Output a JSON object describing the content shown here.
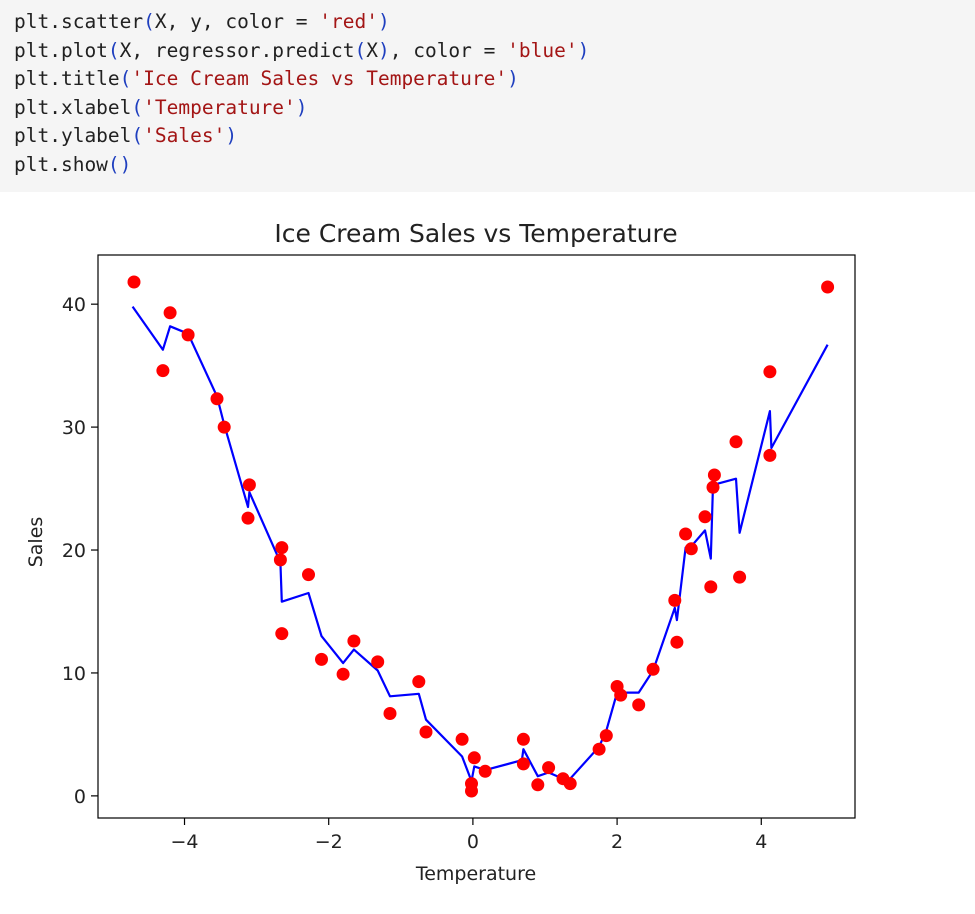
{
  "code_cell": {
    "lines": [
      [
        {
          "t": "plt.scatter",
          "k": "plain"
        },
        {
          "t": "(",
          "k": "paren"
        },
        {
          "t": "X, y, color = ",
          "k": "plain"
        },
        {
          "t": "'red'",
          "k": "str"
        },
        {
          "t": ")",
          "k": "paren"
        }
      ],
      [
        {
          "t": "plt.plot",
          "k": "plain"
        },
        {
          "t": "(",
          "k": "paren"
        },
        {
          "t": "X, regressor.predict",
          "k": "plain"
        },
        {
          "t": "(",
          "k": "paren"
        },
        {
          "t": "X",
          "k": "plain"
        },
        {
          "t": ")",
          "k": "paren"
        },
        {
          "t": ", color = ",
          "k": "plain"
        },
        {
          "t": "'blue'",
          "k": "str"
        },
        {
          "t": ")",
          "k": "paren"
        }
      ],
      [
        {
          "t": "plt.title",
          "k": "plain"
        },
        {
          "t": "(",
          "k": "paren"
        },
        {
          "t": "'Ice Cream Sales vs Temperature'",
          "k": "str"
        },
        {
          "t": ")",
          "k": "paren"
        }
      ],
      [
        {
          "t": "plt.xlabel",
          "k": "plain"
        },
        {
          "t": "(",
          "k": "paren"
        },
        {
          "t": "'Temperature'",
          "k": "str"
        },
        {
          "t": ")",
          "k": "paren"
        }
      ],
      [
        {
          "t": "plt.ylabel",
          "k": "plain"
        },
        {
          "t": "(",
          "k": "paren"
        },
        {
          "t": "'Sales'",
          "k": "str"
        },
        {
          "t": ")",
          "k": "paren"
        }
      ],
      [
        {
          "t": "plt.show",
          "k": "plain"
        },
        {
          "t": "()",
          "k": "paren"
        }
      ]
    ]
  },
  "chart_data": {
    "type": "scatter",
    "title": "Ice Cream Sales vs Temperature",
    "xlabel": "Temperature",
    "ylabel": "Sales",
    "xlim": [
      -5.2,
      5.3
    ],
    "ylim": [
      -1.8,
      44
    ],
    "xticks": [
      -4,
      -2,
      0,
      2,
      4
    ],
    "xtick_labels": [
      "−4",
      "−2",
      "0",
      "2",
      "4"
    ],
    "yticks": [
      0,
      10,
      20,
      30,
      40
    ],
    "ytick_labels": [
      "0",
      "10",
      "20",
      "30",
      "40"
    ],
    "grid": false,
    "point_color": "#ff0000",
    "line_color": "#0000ff",
    "points": [
      [
        -4.7,
        41.8
      ],
      [
        -4.3,
        34.6
      ],
      [
        -4.2,
        39.3
      ],
      [
        -3.95,
        37.5
      ],
      [
        -3.55,
        32.3
      ],
      [
        -3.45,
        30.0
      ],
      [
        -3.1,
        25.3
      ],
      [
        -3.12,
        22.6
      ],
      [
        -2.65,
        20.2
      ],
      [
        -2.67,
        19.2
      ],
      [
        -2.65,
        13.2
      ],
      [
        -2.28,
        18.0
      ],
      [
        -2.1,
        11.1
      ],
      [
        -1.8,
        9.9
      ],
      [
        -1.65,
        12.6
      ],
      [
        -1.32,
        10.9
      ],
      [
        -1.15,
        6.7
      ],
      [
        -0.75,
        9.3
      ],
      [
        -0.65,
        5.2
      ],
      [
        -0.15,
        4.6
      ],
      [
        -0.02,
        1.0
      ],
      [
        -0.02,
        0.4
      ],
      [
        0.02,
        3.1
      ],
      [
        0.17,
        2.0
      ],
      [
        0.7,
        4.6
      ],
      [
        0.7,
        2.6
      ],
      [
        0.9,
        0.9
      ],
      [
        1.05,
        2.3
      ],
      [
        1.25,
        1.4
      ],
      [
        1.35,
        1.0
      ],
      [
        1.75,
        3.8
      ],
      [
        1.85,
        4.9
      ],
      [
        2.0,
        8.9
      ],
      [
        2.05,
        8.2
      ],
      [
        2.3,
        7.4
      ],
      [
        2.5,
        10.3
      ],
      [
        2.8,
        15.9
      ],
      [
        2.83,
        12.5
      ],
      [
        2.95,
        21.3
      ],
      [
        3.03,
        20.1
      ],
      [
        3.22,
        22.7
      ],
      [
        3.3,
        17.0
      ],
      [
        3.33,
        25.1
      ],
      [
        3.35,
        26.1
      ],
      [
        3.65,
        28.8
      ],
      [
        3.7,
        17.8
      ],
      [
        4.12,
        34.5
      ],
      [
        4.12,
        27.7
      ],
      [
        4.92,
        41.4
      ]
    ],
    "line": [
      [
        -4.72,
        39.8
      ],
      [
        -4.3,
        36.3
      ],
      [
        -4.2,
        38.2
      ],
      [
        -3.95,
        37.6
      ],
      [
        -3.55,
        32.5
      ],
      [
        -3.45,
        30.2
      ],
      [
        -3.12,
        23.5
      ],
      [
        -3.1,
        24.7
      ],
      [
        -2.67,
        19.0
      ],
      [
        -2.65,
        15.8
      ],
      [
        -2.28,
        16.5
      ],
      [
        -2.1,
        13.0
      ],
      [
        -1.8,
        10.8
      ],
      [
        -1.65,
        11.9
      ],
      [
        -1.32,
        10.2
      ],
      [
        -1.15,
        8.1
      ],
      [
        -0.75,
        8.3
      ],
      [
        -0.65,
        6.2
      ],
      [
        -0.15,
        3.2
      ],
      [
        -0.02,
        1.2
      ],
      [
        0.02,
        2.4
      ],
      [
        0.17,
        2.1
      ],
      [
        0.68,
        2.9
      ],
      [
        0.7,
        3.8
      ],
      [
        0.9,
        1.6
      ],
      [
        1.05,
        1.9
      ],
      [
        1.25,
        1.4
      ],
      [
        1.35,
        1.4
      ],
      [
        1.75,
        4.0
      ],
      [
        1.85,
        5.3
      ],
      [
        2.0,
        8.4
      ],
      [
        2.3,
        8.4
      ],
      [
        2.5,
        10.2
      ],
      [
        2.8,
        15.3
      ],
      [
        2.83,
        14.3
      ],
      [
        2.95,
        20.2
      ],
      [
        3.03,
        20.3
      ],
      [
        3.22,
        21.6
      ],
      [
        3.3,
        19.3
      ],
      [
        3.33,
        25.3
      ],
      [
        3.65,
        25.8
      ],
      [
        3.7,
        21.4
      ],
      [
        4.12,
        31.3
      ],
      [
        4.14,
        28.3
      ],
      [
        4.92,
        36.7
      ]
    ]
  }
}
